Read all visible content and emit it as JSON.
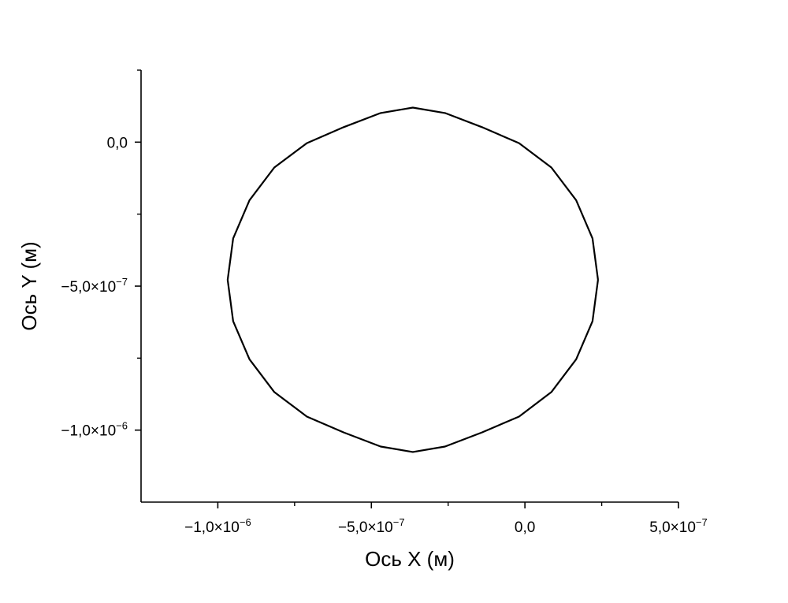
{
  "chart_data": {
    "type": "line",
    "title": "",
    "xlabel": "Ось X (м)",
    "ylabel": "Ось Y (м)",
    "xlim": [
      -1.25e-06,
      5e-07
    ],
    "ylim": [
      -1.25e-06,
      2.5e-07
    ],
    "grid": false,
    "x_ticks": [
      {
        "value": -1e-06,
        "mantissa": "−1,0×10",
        "exp": "−6"
      },
      {
        "value": -5e-07,
        "mantissa": "−5,0×10",
        "exp": "−7"
      },
      {
        "value": 0.0,
        "mantissa": "0,0",
        "exp": ""
      },
      {
        "value": 5e-07,
        "mantissa": "5,0×10",
        "exp": "−7"
      }
    ],
    "y_ticks": [
      {
        "value": 0.0,
        "mantissa": "0,0",
        "exp": ""
      },
      {
        "value": -5e-07,
        "mantissa": "−5,0×10",
        "exp": "−7"
      },
      {
        "value": -1e-06,
        "mantissa": "−1,0×10",
        "exp": "−6"
      }
    ],
    "x_minor_ticks": [
      -7.5e-07,
      -2.5e-07,
      2.5e-07
    ],
    "y_minor_ticks": [
      2.5e-07,
      -2.5e-07,
      -7.5e-07
    ],
    "series": [
      {
        "color": "#000000",
        "x": [
          2.38e-07,
          2.2e-07,
          1.67e-07,
          8.6e-08,
          -1.9e-08,
          -1.4e-07,
          -2.6e-07,
          -3.65e-07,
          -4.7e-07,
          -5.9e-07,
          -7.1e-07,
          -8.16e-07,
          -8.97e-07,
          -9.5e-07,
          -9.68e-07,
          -9.5e-07,
          -8.97e-07,
          -8.16e-07,
          -7.1e-07,
          -5.9e-07,
          -4.7e-07,
          -3.65e-07,
          -2.6e-07,
          -1.4e-07,
          -1.9e-08,
          8.6e-08,
          1.67e-07,
          2.2e-07,
          2.38e-07
        ],
        "y": [
          -4.78e-07,
          -3.34e-07,
          -2.02e-07,
          -8.8e-08,
          -3.5e-09,
          5.2e-08,
          1.01e-07,
          1.2e-07,
          1.01e-07,
          5.2e-08,
          -3.5e-09,
          -8.8e-08,
          -2.02e-07,
          -3.34e-07,
          -4.78e-07,
          -6.22e-07,
          -7.54e-07,
          -8.68e-07,
          -9.53e-07,
          -1.008e-06,
          -1.057e-06,
          -1.076e-06,
          -1.057e-06,
          -1.008e-06,
          -9.53e-07,
          -8.68e-07,
          -7.54e-07,
          -6.22e-07,
          -4.78e-07
        ]
      }
    ]
  }
}
